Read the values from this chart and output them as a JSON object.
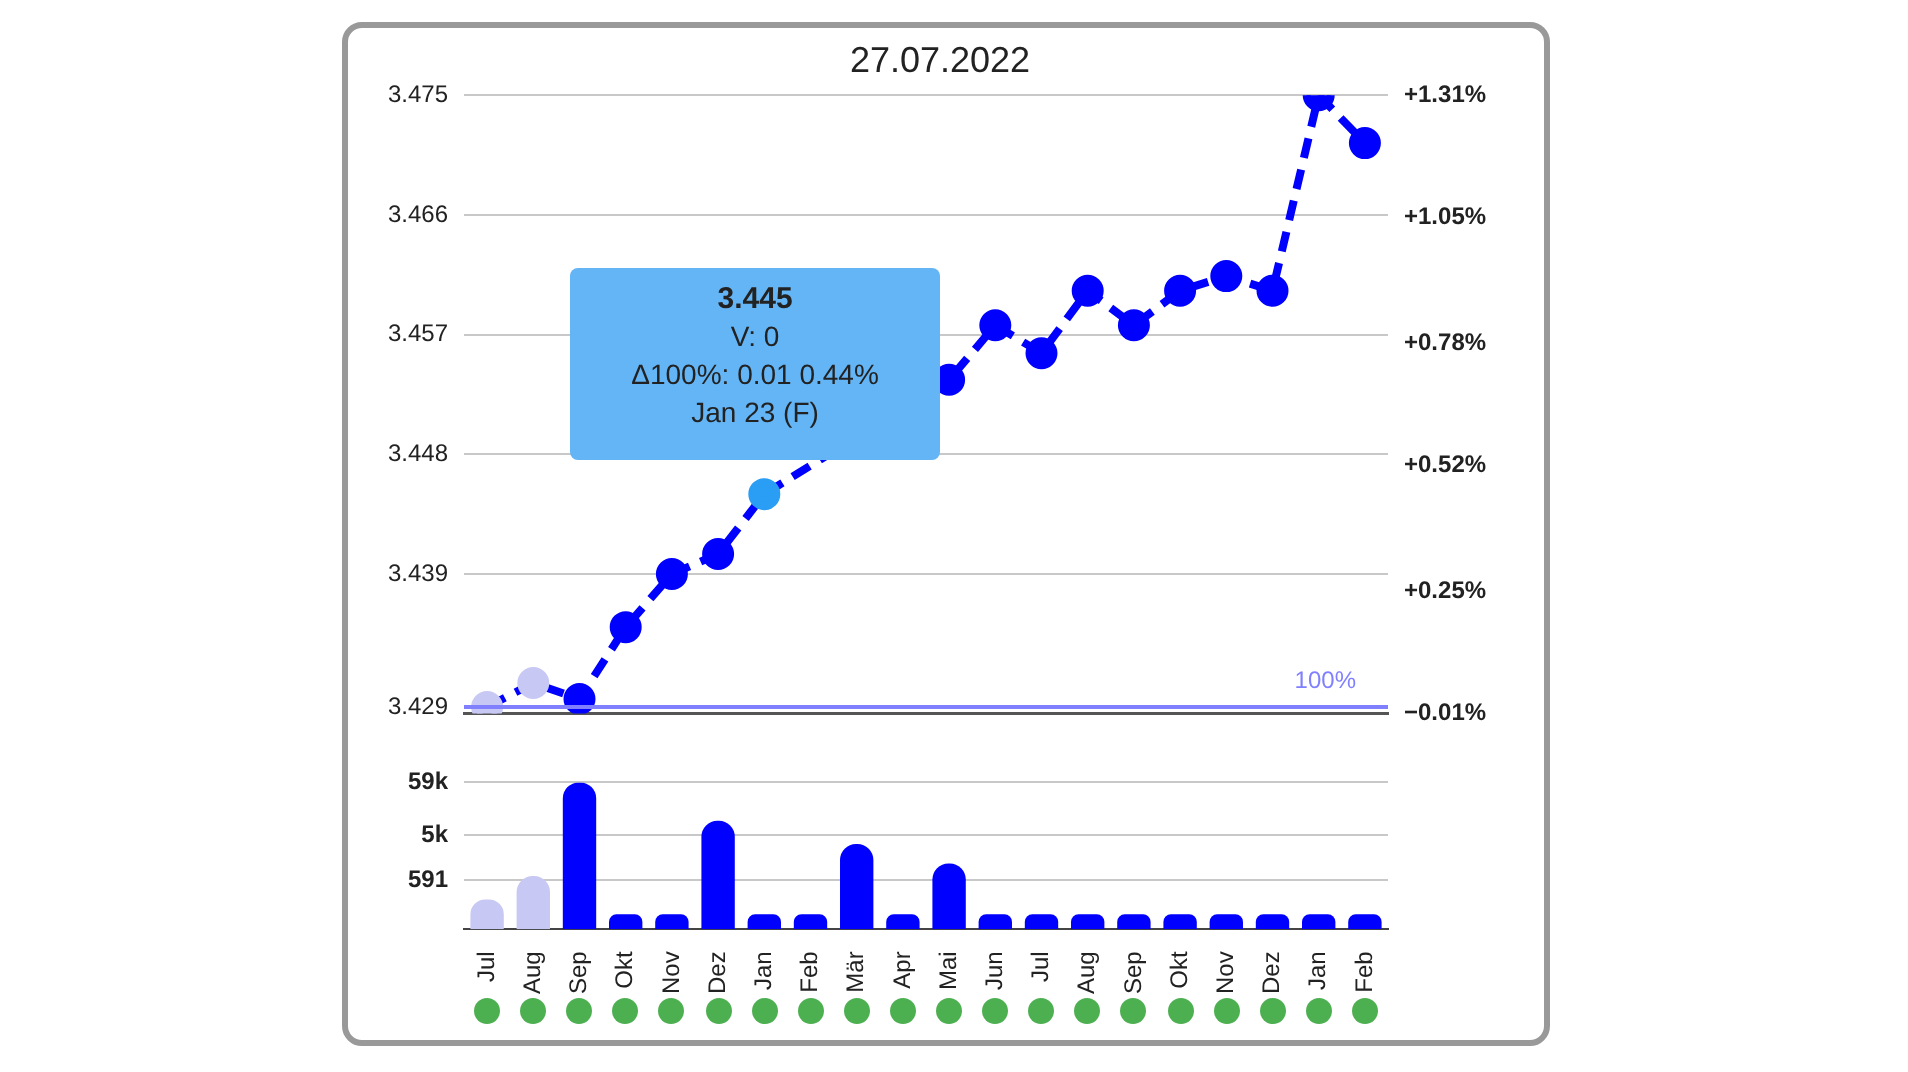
{
  "chart_data": [
    {
      "type": "line",
      "title": "27.07.2022",
      "categories": [
        null,
        null,
        null,
        null,
        null,
        null,
        null,
        null,
        null,
        null,
        null,
        null,
        null,
        null,
        null,
        null,
        null,
        null,
        null,
        null
      ],
      "series": [
        {
          "color": "#0000ff",
          "colors": [
            "#c8c8f5",
            "#c8c8f5",
            "#0000ff",
            "#0000ff",
            "#0000ff",
            "#0000ff",
            "#2a9df4",
            "#0000ff",
            "#0000ff",
            "#0000ff",
            "#0000ff",
            "#0000ff",
            "#0000ff",
            "#0000ff",
            "#0000ff",
            "#0000ff",
            "#0000ff",
            "#0000ff",
            "#0000ff",
            "#0000ff"
          ],
          "values": [
            3.429,
            3.4308,
            3.4296,
            3.435,
            3.439,
            3.4405,
            3.445,
            null,
            null,
            null,
            3.4536,
            3.4577,
            3.4556,
            3.4603,
            3.4577,
            3.4603,
            3.4614,
            3.4603,
            3.475,
            3.4714
          ]
        }
      ],
      "ylim": [
        3.4285,
        3.475
      ],
      "yticks": [
        3.429,
        3.439,
        3.448,
        3.457,
        3.466,
        3.475
      ],
      "y2lim": [
        -0.01,
        1.31
      ],
      "y2ticks": [
        {
          "value": -0.01,
          "label": "−0.01%"
        },
        {
          "value": 0.25,
          "label": "+0.25%"
        },
        {
          "value": 0.52,
          "label": "+0.52%"
        },
        {
          "value": 0.78,
          "label": "+0.78%"
        },
        {
          "value": 1.05,
          "label": "+1.05%"
        },
        {
          "value": 1.31,
          "label": "+1.31%"
        }
      ],
      "ref_lines": [
        {
          "axis": "y",
          "value": 3.429,
          "color": "#8080ff"
        }
      ],
      "annotations": [
        "3.445",
        "V:  0",
        "Δ100%:  0.01   0.44%",
        "Jan 23 (F)",
        {
          "text": "100%",
          "y": 3.429
        }
      ],
      "grid": "y",
      "marker": "circle",
      "line_style": "dashed",
      "tick_labels": "y"
    },
    {
      "type": "bar",
      "categories": [
        "Jul",
        "Aug",
        "Sep",
        "Okt",
        "Nov",
        "Dez",
        "Jan",
        "Feb",
        "Mär",
        "Apr",
        "Mai",
        "Jun",
        "Jul",
        "Aug",
        "Sep",
        "Okt",
        "Nov",
        "Dez",
        "Jan",
        "Feb"
      ],
      "values": [
        240,
        720,
        59000,
        120,
        120,
        9700,
        120,
        120,
        3240,
        120,
        1300,
        120,
        120,
        120,
        120,
        120,
        120,
        120,
        120,
        120
      ],
      "colors": [
        "#c8c8f5",
        "#c8c8f5",
        "#0000ff",
        "#0000ff",
        "#0000ff",
        "#0000ff",
        "#0000ff",
        "#0000ff",
        "#0000ff",
        "#0000ff",
        "#0000ff",
        "#0000ff",
        "#0000ff",
        "#0000ff",
        "#0000ff",
        "#0000ff",
        "#0000ff",
        "#0000ff",
        "#0000ff",
        "#0000ff"
      ],
      "log": "y",
      "ylim": [
        59,
        59000
      ],
      "yticks": [
        591,
        {
          "value": 5000,
          "label": "5k"
        },
        {
          "value": 59000,
          "label": "59k"
        }
      ],
      "grid": "y"
    }
  ]
}
